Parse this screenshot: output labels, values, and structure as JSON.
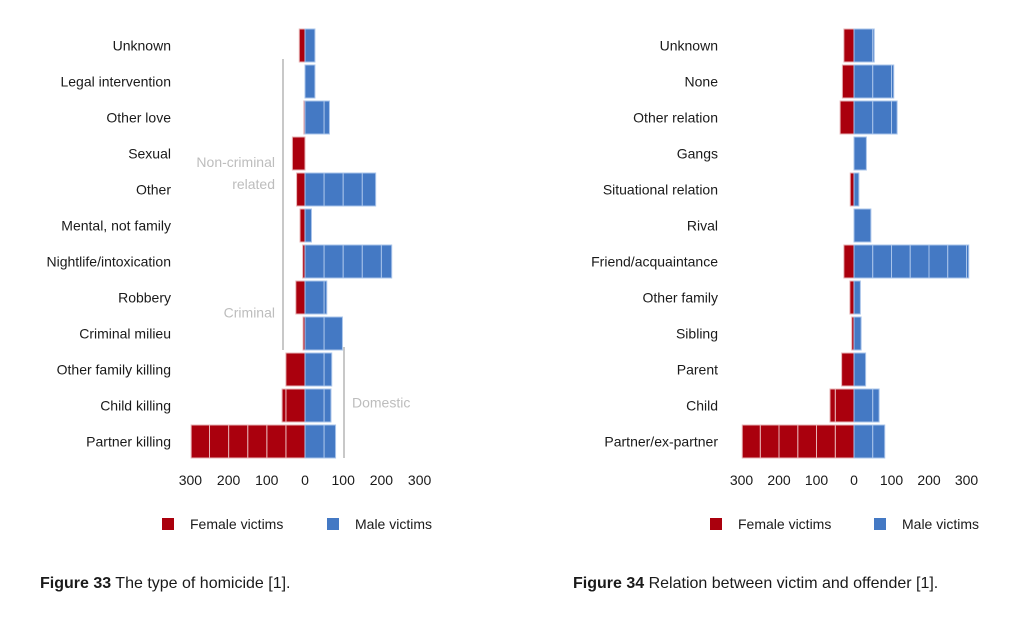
{
  "colors": {
    "female": "#aa000d",
    "male": "#4479c4",
    "bracket": "#c8c8c8",
    "group_text": "#bdbdbd"
  },
  "chart_data": [
    {
      "type": "bar",
      "orientation": "horizontal-butterfly",
      "title": "",
      "categories": [
        "Unknown",
        "Legal intervention",
        "Other love",
        "Sexual",
        "Other",
        "Mental, not family",
        "Nightlife/intoxication",
        "Robbery",
        "Criminal milieu",
        "Other family killing",
        "Child killing",
        "Partner killing"
      ],
      "series": [
        {
          "name": "Female victims",
          "values": [
            15,
            0,
            3,
            33,
            22,
            13,
            6,
            24,
            5,
            50,
            60,
            298
          ]
        },
        {
          "name": "Male victims",
          "values": [
            26,
            26,
            64,
            0,
            185,
            17,
            227,
            57,
            98,
            70,
            68,
            80
          ]
        }
      ],
      "xticks": [
        "300",
        "200",
        "100",
        "0",
        "100",
        "200",
        "300"
      ],
      "xlim": [
        -300,
        300
      ],
      "segment_size": 50,
      "groups": [
        {
          "label_lines": [
            "Non-criminal",
            "related"
          ],
          "from": "Legal intervention",
          "to": "Nightlife/intoxication",
          "side": "left"
        },
        {
          "label_lines": [
            "Criminal"
          ],
          "from": "Robbery",
          "to": "Criminal milieu",
          "side": "left"
        },
        {
          "label_lines": [
            "Domestic"
          ],
          "from": "Other family killing",
          "to": "Partner killing",
          "side": "right"
        }
      ],
      "legend": [
        "Female victims",
        "Male victims"
      ],
      "legend_position": "bottom",
      "grid": false
    },
    {
      "type": "bar",
      "orientation": "horizontal-butterfly",
      "title": "",
      "categories": [
        "Unknown",
        "None",
        "Other relation",
        "Gangs",
        "Situational relation",
        "Rival",
        "Friend/acquaintance",
        "Other family",
        "Sibling",
        "Parent",
        "Child",
        "Partner/ex-partner"
      ],
      "series": [
        {
          "name": "Female victims",
          "values": [
            27,
            31,
            37,
            0,
            10,
            0,
            27,
            11,
            6,
            33,
            64,
            298
          ]
        },
        {
          "name": "Male victims",
          "values": [
            54,
            106,
            115,
            33,
            13,
            45,
            306,
            17,
            19,
            31,
            67,
            82
          ]
        }
      ],
      "xticks": [
        "300",
        "200",
        "100",
        "0",
        "100",
        "200",
        "300"
      ],
      "xlim": [
        -300,
        300
      ],
      "segment_size": 50,
      "groups": [],
      "legend": [
        "Female victims",
        "Male victims"
      ],
      "legend_position": "bottom",
      "grid": false
    }
  ],
  "captions": [
    {
      "label": "Figure 33",
      "text": " The type of homicide [1]."
    },
    {
      "label": "Figure 34",
      "text": " Relation between victim and offender [1]."
    }
  ]
}
